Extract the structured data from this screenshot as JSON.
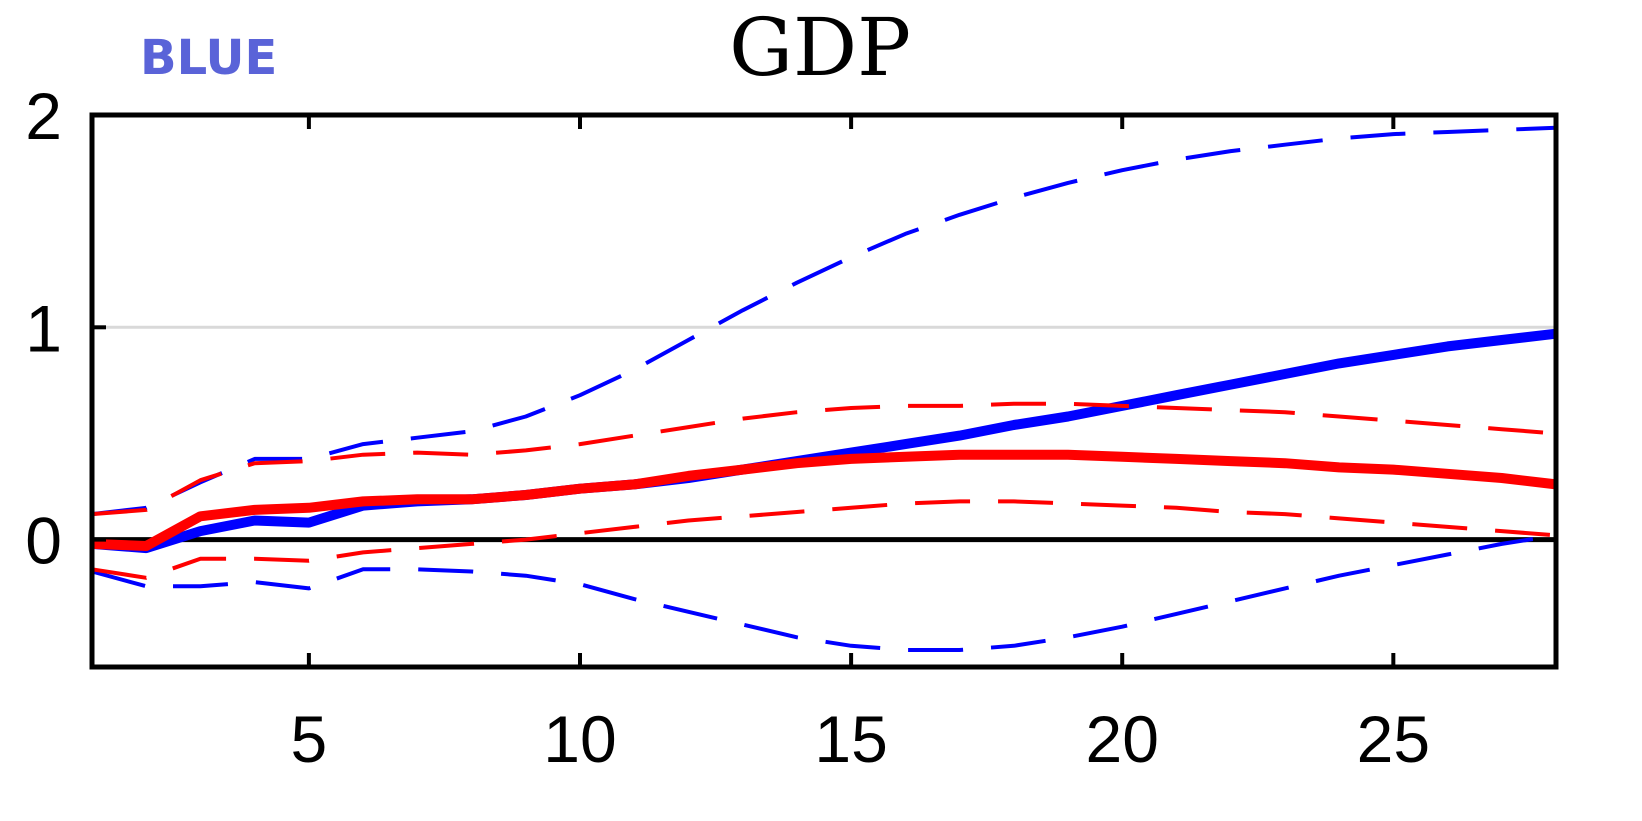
{
  "chart_data": {
    "type": "line",
    "title": "GDP",
    "xlabel": "",
    "ylabel": "",
    "xlim": [
      1,
      28
    ],
    "ylim": [
      -0.6,
      2
    ],
    "xticks": [
      5,
      10,
      15,
      20,
      25
    ],
    "yticks": [
      0,
      1,
      2
    ],
    "grid": "horizontal line at y=1",
    "legend": {
      "label": "BLUE",
      "color": "#5a63d8",
      "placement": "top-left"
    },
    "x": [
      1,
      2,
      3,
      4,
      5,
      6,
      7,
      8,
      9,
      10,
      11,
      12,
      13,
      14,
      15,
      16,
      17,
      18,
      19,
      20,
      21,
      22,
      23,
      24,
      25,
      26,
      27,
      28
    ],
    "series": [
      {
        "name": "",
        "color": "#0000ff",
        "style": "solid",
        "values": [
          -0.02,
          -0.04,
          0.04,
          0.09,
          0.08,
          0.16,
          0.18,
          0.19,
          0.21,
          0.24,
          0.26,
          0.29,
          0.33,
          0.37,
          0.41,
          0.45,
          0.49,
          0.54,
          0.58,
          0.63,
          0.68,
          0.73,
          0.78,
          0.83,
          0.87,
          0.91,
          0.94,
          0.97
        ]
      },
      {
        "name": "",
        "color": "#0000ff",
        "style": "dashed",
        "values": [
          0.12,
          0.15,
          0.27,
          0.38,
          0.38,
          0.45,
          0.48,
          0.51,
          0.58,
          0.68,
          0.8,
          0.94,
          1.08,
          1.21,
          1.33,
          1.44,
          1.53,
          1.61,
          1.68,
          1.74,
          1.79,
          1.83,
          1.86,
          1.89,
          1.91,
          1.92,
          1.93,
          1.94
        ]
      },
      {
        "name": "",
        "color": "#0000ff",
        "style": "dashed",
        "values": [
          -0.15,
          -0.22,
          -0.22,
          -0.2,
          -0.23,
          -0.14,
          -0.14,
          -0.15,
          -0.17,
          -0.21,
          -0.28,
          -0.34,
          -0.4,
          -0.46,
          -0.5,
          -0.52,
          -0.52,
          -0.5,
          -0.46,
          -0.41,
          -0.35,
          -0.29,
          -0.23,
          -0.17,
          -0.12,
          -0.07,
          -0.02,
          0.02
        ]
      },
      {
        "name": "",
        "color": "#ff0000",
        "style": "solid",
        "values": [
          -0.02,
          -0.03,
          0.11,
          0.14,
          0.15,
          0.18,
          0.19,
          0.19,
          0.21,
          0.24,
          0.26,
          0.3,
          0.33,
          0.36,
          0.38,
          0.39,
          0.4,
          0.4,
          0.4,
          0.39,
          0.38,
          0.37,
          0.36,
          0.34,
          0.33,
          0.31,
          0.29,
          0.26
        ]
      },
      {
        "name": "",
        "color": "#ff0000",
        "style": "dashed",
        "values": [
          0.12,
          0.14,
          0.28,
          0.36,
          0.37,
          0.4,
          0.41,
          0.4,
          0.42,
          0.45,
          0.49,
          0.53,
          0.57,
          0.6,
          0.62,
          0.63,
          0.63,
          0.64,
          0.64,
          0.63,
          0.62,
          0.61,
          0.6,
          0.58,
          0.56,
          0.54,
          0.52,
          0.5
        ]
      },
      {
        "name": "",
        "color": "#ff0000",
        "style": "dashed",
        "values": [
          -0.14,
          -0.18,
          -0.09,
          -0.09,
          -0.1,
          -0.06,
          -0.04,
          -0.02,
          0.0,
          0.03,
          0.06,
          0.09,
          0.11,
          0.13,
          0.15,
          0.17,
          0.18,
          0.18,
          0.17,
          0.16,
          0.15,
          0.13,
          0.12,
          0.1,
          0.08,
          0.06,
          0.04,
          0.02
        ]
      }
    ]
  }
}
